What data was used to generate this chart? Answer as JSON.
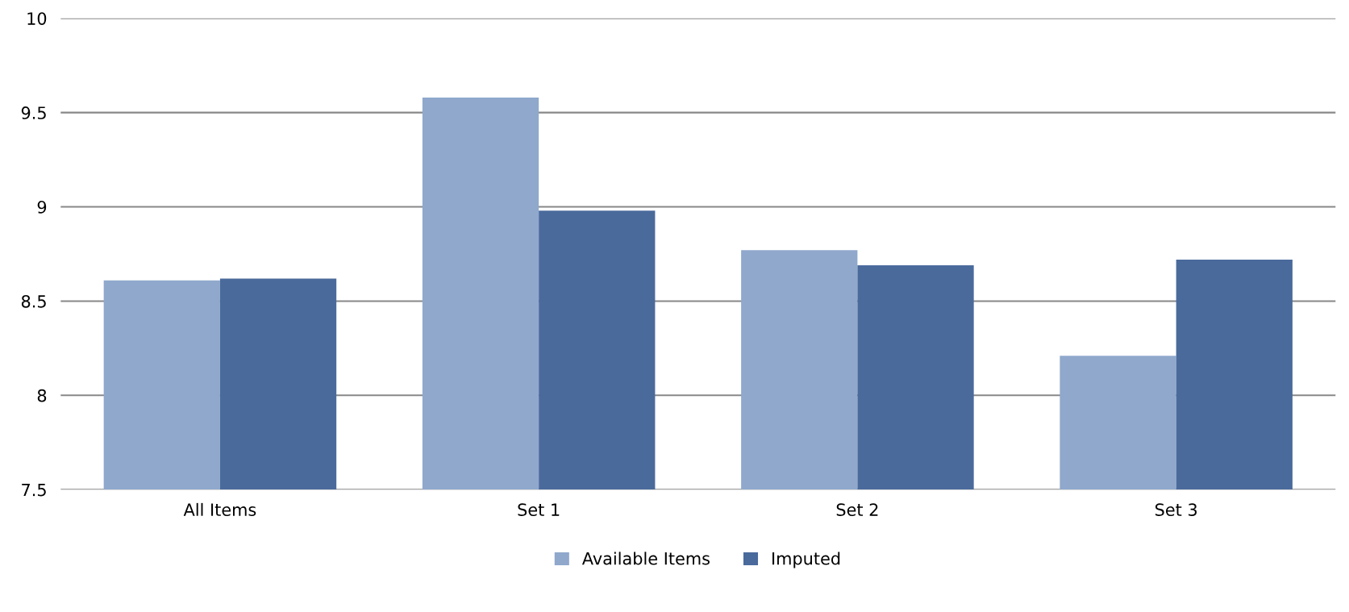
{
  "chart_data": {
    "type": "bar",
    "categories": [
      "All Items",
      "Set 1",
      "Set 2",
      "Set 3"
    ],
    "series": [
      {
        "name": "Available Items",
        "color": "#8fa8cc",
        "values": [
          8.61,
          9.58,
          8.77,
          8.21
        ]
      },
      {
        "name": "Imputed",
        "color": "#4a6a9c",
        "values": [
          8.62,
          8.98,
          8.69,
          8.72
        ]
      }
    ],
    "ylim": [
      7.5,
      10
    ],
    "yticks": [
      7.5,
      8,
      8.5,
      9,
      9.5,
      10
    ],
    "grid": "y",
    "legend": "bottom"
  }
}
